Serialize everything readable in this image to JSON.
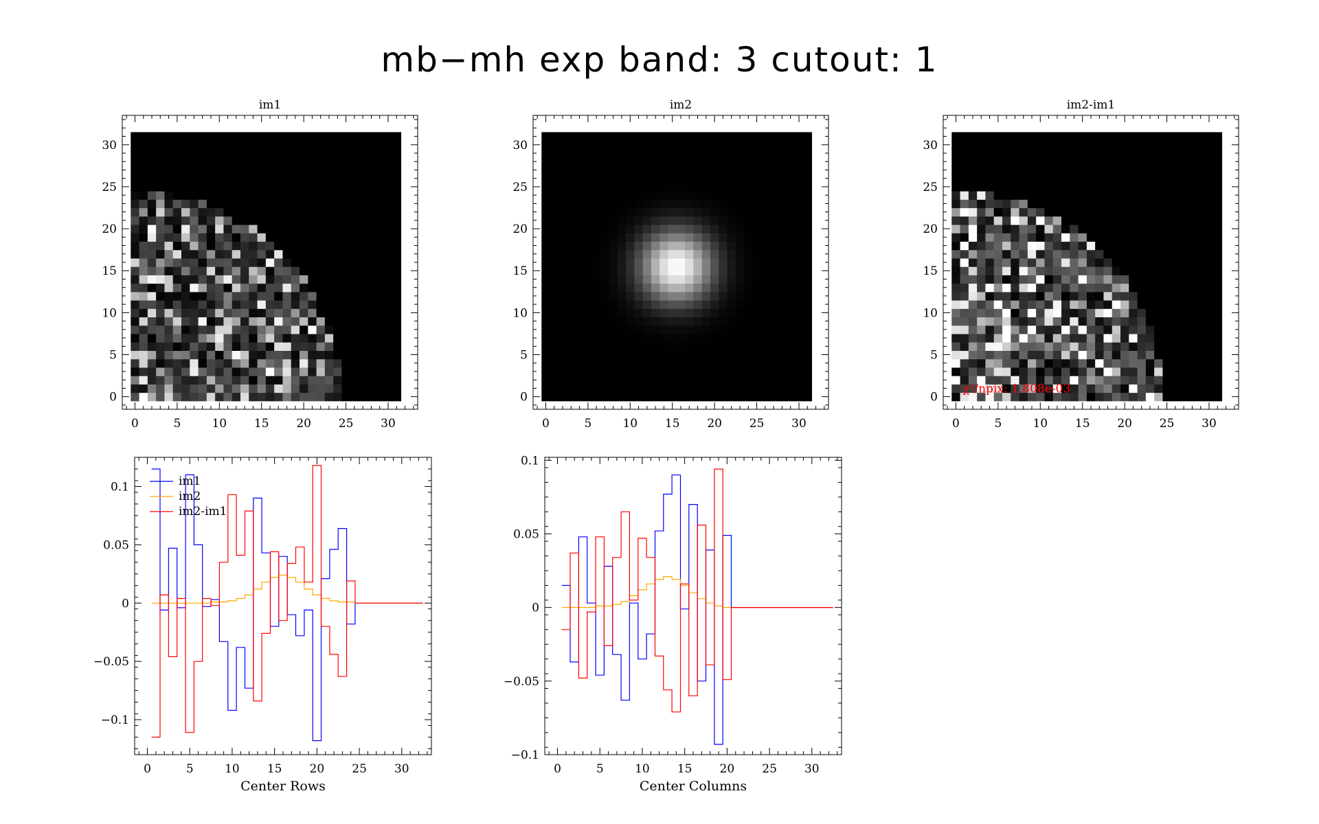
{
  "figure": {
    "title": "mb−mh exp band: 3 cutout: 1"
  },
  "colors": {
    "im1": "#0000ff",
    "im2": "#ffa500",
    "diff": "#ff0000",
    "annotation": "#ff0000",
    "background": "#ffffff",
    "axes": "#000000"
  },
  "chart_data": [
    {
      "type": "heatmap",
      "title": "im1",
      "xlim": [
        -1.5,
        33.5
      ],
      "ylim": [
        -1.5,
        33.5
      ],
      "xticks": [
        0,
        5,
        10,
        15,
        20,
        25,
        30
      ],
      "yticks": [
        0,
        5,
        10,
        15,
        20,
        25,
        30
      ],
      "grid_size": [
        32,
        32
      ],
      "colormap": "grayscale",
      "description_values": "sparse noisy pixels filling a quarter disk of radius ~24 centered at (0,0); empty elsewhere"
    },
    {
      "type": "heatmap",
      "title": "im2",
      "xlim": [
        -1.5,
        33.5
      ],
      "ylim": [
        -1.5,
        33.5
      ],
      "xticks": [
        0,
        5,
        10,
        15,
        20,
        25,
        30
      ],
      "yticks": [
        0,
        5,
        10,
        15,
        20,
        25,
        30
      ],
      "grid_size": [
        32,
        32
      ],
      "colormap": "grayscale",
      "peak_center": [
        15.5,
        15.5
      ]
    },
    {
      "type": "heatmap",
      "title": "im2-im1",
      "xlim": [
        -1.5,
        33.5
      ],
      "ylim": [
        -1.5,
        33.5
      ],
      "xticks": [
        0,
        5,
        10,
        15,
        20,
        25,
        30
      ],
      "yticks": [
        0,
        5,
        10,
        15,
        20,
        25,
        30
      ],
      "grid_size": [
        32,
        32
      ],
      "colormap": "grayscale",
      "annotation": "χ²/npix: 1.808e-03"
    },
    {
      "type": "line",
      "xlabel": "Center Rows",
      "xlim": [
        -1.5,
        33.5
      ],
      "ylim": [
        -0.13,
        0.125
      ],
      "xticks": [
        0,
        5,
        10,
        15,
        20,
        25,
        30
      ],
      "yticks": [
        -0.1,
        -0.05,
        0,
        0.05,
        0.1
      ],
      "ytick_labels": [
        "−0.1",
        "−0.05",
        "0",
        "0.05",
        "0.1"
      ],
      "legend_position": "top-left",
      "step": true,
      "x": [
        1,
        2,
        3,
        4,
        5,
        6,
        7,
        8,
        9,
        10,
        11,
        12,
        13,
        14,
        15,
        16,
        17,
        18,
        19,
        20,
        21,
        22,
        23,
        24,
        25,
        26,
        27,
        28,
        29,
        30,
        31,
        32
      ],
      "series": [
        {
          "name": "im1",
          "color": "#0000ff",
          "values": [
            0.115,
            -0.006,
            0.047,
            -0.004,
            0.11,
            0.05,
            -0.003,
            0.003,
            -0.033,
            -0.092,
            -0.038,
            -0.073,
            0.09,
            0.043,
            -0.02,
            0.04,
            -0.01,
            -0.028,
            -0.006,
            -0.118,
            0.021,
            0.046,
            0.064,
            -0.018,
            0,
            0,
            0,
            0,
            0,
            0,
            0,
            0
          ]
        },
        {
          "name": "im2",
          "color": "#ffa500",
          "values": [
            0,
            0,
            0,
            0,
            0,
            0,
            0,
            0.001,
            0.001,
            0.002,
            0.004,
            0.007,
            0.012,
            0.018,
            0.022,
            0.024,
            0.022,
            0.018,
            0.012,
            0.007,
            0.004,
            0.002,
            0.001,
            0.001,
            0,
            0,
            0,
            0,
            0,
            0,
            0,
            0
          ]
        },
        {
          "name": "im2-im1",
          "color": "#ff0000",
          "values": [
            -0.115,
            0.007,
            -0.046,
            0.004,
            -0.111,
            -0.05,
            0.004,
            -0.002,
            0.035,
            0.093,
            0.041,
            0.079,
            -0.084,
            -0.026,
            0.044,
            -0.015,
            0.034,
            0.048,
            0.018,
            0.118,
            -0.02,
            -0.044,
            -0.063,
            0.019,
            0,
            0,
            0,
            0,
            0,
            0,
            0,
            0
          ]
        }
      ]
    },
    {
      "type": "line",
      "xlabel": "Center Columns",
      "xlim": [
        -1.5,
        33.5
      ],
      "ylim": [
        -0.1,
        0.102
      ],
      "xticks": [
        0,
        5,
        10,
        15,
        20,
        25,
        30
      ],
      "yticks": [
        -0.1,
        -0.05,
        0,
        0.05,
        0.1
      ],
      "ytick_labels": [
        "−0.1",
        "−0.05",
        "0",
        "0.05",
        "0.1"
      ],
      "step": true,
      "x": [
        1,
        2,
        3,
        4,
        5,
        6,
        7,
        8,
        9,
        10,
        11,
        12,
        13,
        14,
        15,
        16,
        17,
        18,
        19,
        20,
        21,
        22,
        23,
        24,
        25,
        26,
        27,
        28,
        29,
        30,
        31,
        32
      ],
      "series": [
        {
          "name": "im1",
          "color": "#0000ff",
          "values": [
            0.015,
            -0.037,
            0.048,
            0.003,
            -0.046,
            0.028,
            -0.032,
            -0.063,
            0.003,
            -0.035,
            -0.018,
            0.052,
            0.077,
            0.09,
            -0.001,
            0.07,
            -0.05,
            0.039,
            -0.093,
            0.049,
            0,
            0,
            0,
            0,
            0,
            0,
            0,
            0,
            0,
            0,
            0,
            0
          ]
        },
        {
          "name": "im2",
          "color": "#ffa500",
          "values": [
            0,
            0,
            0,
            0,
            0.001,
            0.001,
            0.002,
            0.004,
            0.008,
            0.012,
            0.016,
            0.019,
            0.021,
            0.019,
            0.015,
            0.01,
            0.006,
            0.003,
            0.001,
            0,
            0,
            0,
            0,
            0,
            0,
            0,
            0,
            0,
            0,
            0,
            0,
            0
          ]
        },
        {
          "name": "im2-im1",
          "color": "#ff0000",
          "values": [
            -0.015,
            0.037,
            -0.048,
            -0.003,
            0.048,
            -0.026,
            0.034,
            0.065,
            0.005,
            0.047,
            0.034,
            -0.033,
            -0.056,
            -0.071,
            0.016,
            -0.06,
            0.056,
            -0.039,
            0.094,
            -0.049,
            0,
            0,
            0,
            0,
            0,
            0,
            0,
            0,
            0,
            0,
            0,
            0
          ]
        }
      ]
    }
  ]
}
